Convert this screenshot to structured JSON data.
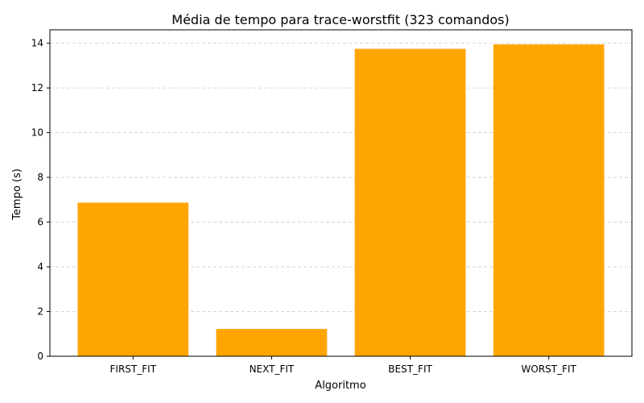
{
  "chart_data": {
    "type": "bar",
    "title": "Média de tempo para trace-worstfit (323 comandos)",
    "xlabel": "Algoritmo",
    "ylabel": "Tempo (s)",
    "categories": [
      "FIRST_FIT",
      "NEXT_FIT",
      "BEST_FIT",
      "WORST_FIT"
    ],
    "values": [
      6.87,
      1.22,
      13.75,
      13.95
    ],
    "ylim": [
      0,
      14.6
    ],
    "yticks": [
      0,
      2,
      4,
      6,
      8,
      10,
      12,
      14
    ],
    "grid": "y-dashed",
    "bar_color": "#ffa500",
    "grid_color": "#cccccc"
  }
}
